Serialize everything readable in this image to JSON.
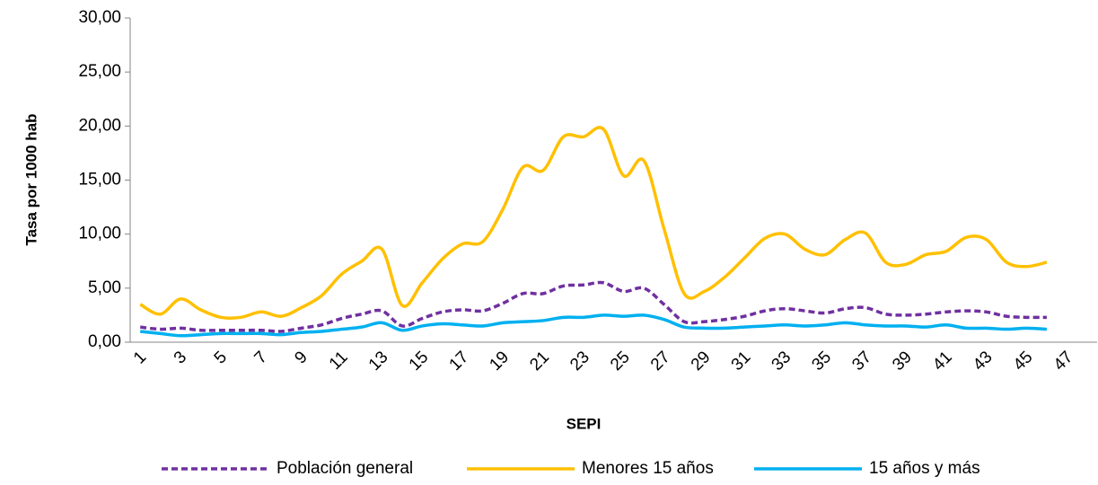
{
  "chart_data": {
    "type": "line",
    "x_label": "SEPI",
    "y_label": "Tasa por 1000 hab",
    "categories": [
      "1",
      null,
      "3",
      null,
      "5",
      null,
      "7",
      null,
      "9",
      null,
      "11",
      null,
      "13",
      null,
      "15",
      null,
      "17",
      null,
      "19",
      null,
      "21",
      null,
      "23",
      null,
      "25",
      null,
      "27",
      null,
      "29",
      null,
      "31",
      null,
      "33",
      null,
      "35",
      null,
      "37",
      null,
      "39",
      null,
      "41",
      null,
      "43",
      null,
      "45",
      null,
      "47",
      null
    ],
    "series": [
      {
        "name": "Población general",
        "color": "#7030a0",
        "line_style": "dashed",
        "values": [
          1.4,
          1.2,
          1.3,
          1.1,
          1.1,
          1.1,
          1.1,
          1.0,
          1.3,
          1.6,
          2.2,
          2.6,
          2.9,
          1.5,
          2.2,
          2.8,
          3.0,
          2.9,
          3.6,
          4.5,
          4.5,
          5.2,
          5.3,
          5.5,
          4.7,
          5.0,
          3.5,
          1.9,
          1.9,
          2.1,
          2.4,
          2.9,
          3.1,
          2.9,
          2.7,
          3.1,
          3.2,
          2.6,
          2.5,
          2.6,
          2.8,
          2.9,
          2.8,
          2.4,
          2.3,
          2.3,
          null,
          null
        ]
      },
      {
        "name": "Menores 15 años",
        "color": "#ffc000",
        "line_style": "solid",
        "values": [
          3.5,
          2.6,
          4.0,
          3.0,
          2.3,
          2.3,
          2.8,
          2.4,
          3.2,
          4.3,
          6.3,
          7.5,
          8.6,
          3.4,
          5.5,
          7.7,
          9.1,
          9.3,
          12.3,
          16.2,
          15.9,
          19.0,
          19.0,
          19.7,
          15.4,
          16.8,
          10.5,
          4.5,
          4.7,
          6.0,
          7.8,
          9.6,
          10.0,
          8.6,
          8.1,
          9.5,
          10.1,
          7.4,
          7.2,
          8.1,
          8.4,
          9.7,
          9.5,
          7.4,
          7.0,
          7.4,
          null,
          null
        ]
      },
      {
        "name": "15 años y más",
        "color": "#00b0f0",
        "line_style": "solid",
        "values": [
          1.0,
          0.8,
          0.6,
          0.7,
          0.8,
          0.8,
          0.8,
          0.7,
          0.9,
          1.0,
          1.2,
          1.4,
          1.8,
          1.1,
          1.5,
          1.7,
          1.6,
          1.5,
          1.8,
          1.9,
          2.0,
          2.3,
          2.3,
          2.5,
          2.4,
          2.5,
          2.1,
          1.4,
          1.3,
          1.3,
          1.4,
          1.5,
          1.6,
          1.5,
          1.6,
          1.8,
          1.6,
          1.5,
          1.5,
          1.4,
          1.6,
          1.3,
          1.3,
          1.2,
          1.3,
          1.2,
          null,
          null
        ]
      }
    ],
    "ylim": [
      0,
      30
    ],
    "yticks": [
      {
        "value": 0,
        "label": "0,00"
      },
      {
        "value": 5,
        "label": "5,00"
      },
      {
        "value": 10,
        "label": "10,00"
      },
      {
        "value": 15,
        "label": "15,00"
      },
      {
        "value": 20,
        "label": "20,00"
      },
      {
        "value": 25,
        "label": "25,00"
      },
      {
        "value": 30,
        "label": "30,00"
      }
    ],
    "grid": false,
    "legend": "bottom"
  }
}
